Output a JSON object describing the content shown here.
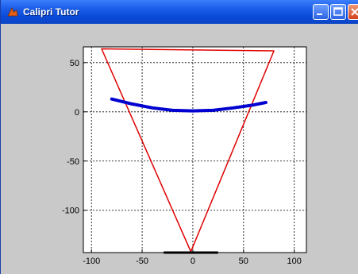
{
  "window": {
    "title": "Calipri Tutor",
    "controls": [
      "minimize",
      "maximize",
      "close"
    ]
  },
  "colors": {
    "titlebar": "#0a4ad8",
    "background": "#c9c9c9",
    "triangle": "#e00000",
    "arc": "#0000d0",
    "base": "#000000"
  },
  "chart_data": {
    "type": "line",
    "xlim": [
      -108,
      112
    ],
    "ylim": [
      -143,
      66
    ],
    "xticks": [
      -100,
      -50,
      0,
      50,
      100
    ],
    "yticks": [
      50,
      0,
      -50,
      -100
    ],
    "xtick_labels": [
      "-100",
      "-50",
      "0",
      "50",
      "100"
    ],
    "ytick_labels": [
      "50",
      "0",
      "-50",
      "-100"
    ],
    "grid": true,
    "series": [
      {
        "style": "red-triangle",
        "points": [
          [
            -90,
            64
          ],
          [
            80,
            62
          ],
          [
            -2,
            -142
          ],
          [
            -90,
            64
          ]
        ]
      },
      {
        "style": "blue-arc",
        "points": [
          [
            -80,
            13
          ],
          [
            -60,
            8
          ],
          [
            -40,
            4
          ],
          [
            -20,
            1.5
          ],
          [
            0,
            1
          ],
          [
            20,
            1.5
          ],
          [
            40,
            4
          ],
          [
            60,
            7
          ],
          [
            72,
            9.5
          ]
        ]
      },
      {
        "style": "black-base",
        "points": [
          [
            -28,
            -143
          ],
          [
            24,
            -143
          ]
        ]
      }
    ]
  }
}
